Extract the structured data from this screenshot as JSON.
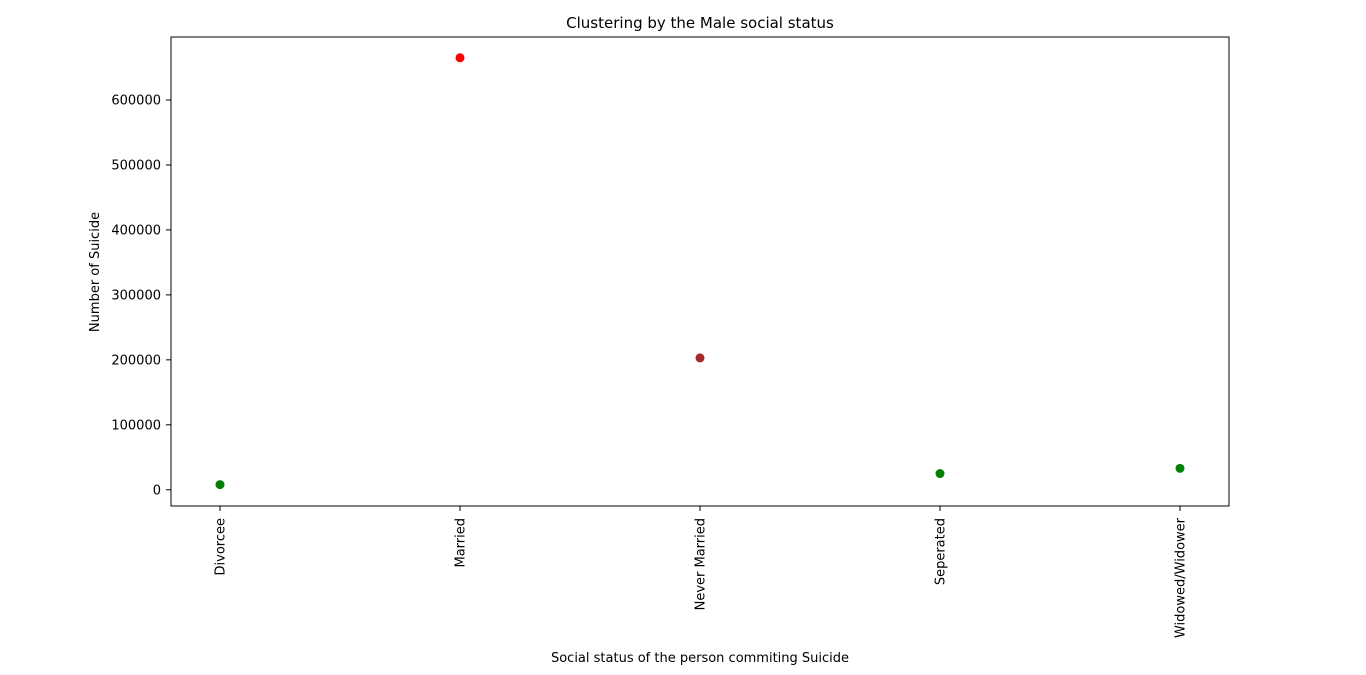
{
  "chart_data": {
    "type": "scatter",
    "title": "Clustering by the Male social status",
    "xlabel": "Social status of the person commiting Suicide",
    "ylabel": "Number of Suicide",
    "categories": [
      "Divorcee",
      "Married",
      "Never Married",
      "Seperated",
      "Widowed/Widower"
    ],
    "values": [
      8000,
      665000,
      203000,
      25000,
      33000
    ],
    "point_colors": [
      "#008000",
      "#ff0000",
      "#a52a2a",
      "#008000",
      "#008000"
    ],
    "ylim": [
      -25000,
      697000
    ],
    "yticks": [
      0,
      100000,
      200000,
      300000,
      400000,
      500000,
      600000
    ],
    "ytick_labels": [
      "0",
      "100000",
      "200000",
      "300000",
      "400000",
      "500000",
      "600000"
    ],
    "grid": false,
    "legend": "none"
  }
}
